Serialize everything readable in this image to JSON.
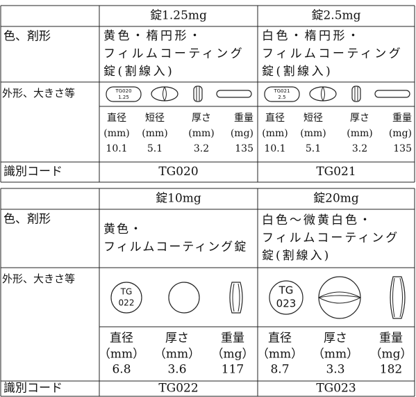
{
  "tables": [
    {
      "row_labels": [
        "色、剤形",
        "外形、大きさ等",
        "識別コード"
      ],
      "products": [
        {
          "name": "錠1.25mg",
          "form": [
            "黄色・楕円形・",
            "フィルムコーティング",
            "錠(割線入)"
          ],
          "imprint": [
            "TG020",
            "1.25"
          ],
          "measures": [
            {
              "label": "直径",
              "unit": "(mm)",
              "value": 10.1
            },
            {
              "label": "短径",
              "unit": "(mm)",
              "value": 5.1
            },
            {
              "label": "厚さ",
              "unit": "(mm)",
              "value": 3.2
            },
            {
              "label": "重量",
              "unit": "(mg)",
              "value": 135
            }
          ],
          "code": "TG020"
        },
        {
          "name": "錠2.5mg",
          "form": [
            "白色・楕円形・",
            "フィルムコーティング",
            "錠(割線入)"
          ],
          "imprint": [
            "TG021",
            "2.5"
          ],
          "measures": [
            {
              "label": "直径",
              "unit": "(mm)",
              "value": 10.1
            },
            {
              "label": "短径",
              "unit": "(mm)",
              "value": 5.1
            },
            {
              "label": "厚さ",
              "unit": "(mm)",
              "value": 3.2
            },
            {
              "label": "重量",
              "unit": "(mg)",
              "value": 135
            }
          ],
          "code": "TG021"
        }
      ]
    },
    {
      "row_labels": [
        "色、剤形",
        "外形、大きさ等",
        "識別コード"
      ],
      "products": [
        {
          "name": "錠10mg",
          "form": [
            "黄色・",
            "フィルムコーティング錠"
          ],
          "imprint": [
            "TG",
            "022"
          ],
          "measures": [
            {
              "label": "直径",
              "unit": "（mm）",
              "value": 6.8
            },
            {
              "label": "厚さ",
              "unit": "（mm）",
              "value": 3.6
            },
            {
              "label": "重量",
              "unit": "（mg）",
              "value": 117
            }
          ],
          "code": "TG022"
        },
        {
          "name": "錠20mg",
          "form": [
            "白色～微黄白色・",
            "フィルムコーティング",
            "錠(割線入)"
          ],
          "imprint": [
            "TG",
            "023"
          ],
          "measures": [
            {
              "label": "直径",
              "unit": "（mm）",
              "value": 8.7
            },
            {
              "label": "厚さ",
              "unit": "（mm）",
              "value": 3.3
            },
            {
              "label": "重量",
              "unit": "（mg）",
              "value": 182
            }
          ],
          "code": "TG023"
        }
      ]
    }
  ]
}
